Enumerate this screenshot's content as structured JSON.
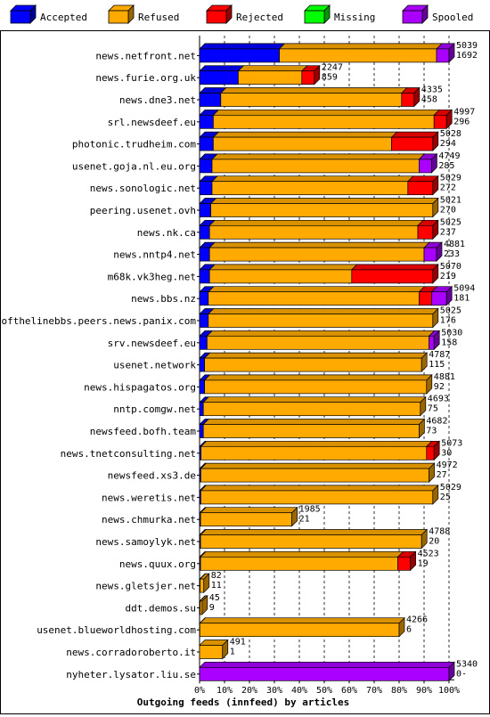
{
  "chart_data": {
    "type": "bar",
    "orientation": "horizontal",
    "stacked": true,
    "xlabel": "Outgoing feeds (innfeed) by articles",
    "x_ticks": [
      "0%",
      "10%",
      "20%",
      "30%",
      "40%",
      "50%",
      "60%",
      "70%",
      "80%",
      "90%",
      "100%"
    ],
    "xlim": [
      0,
      100
    ],
    "legend": {
      "placement": "top",
      "items": [
        {
          "name": "Accepted",
          "color": "#0000ff"
        },
        {
          "name": "Refused",
          "color": "#ffaa00"
        },
        {
          "name": "Rejected",
          "color": "#ff0000"
        },
        {
          "name": "Missing",
          "color": "#00ff00"
        },
        {
          "name": "Spooled",
          "color": "#aa00ff"
        }
      ]
    },
    "rows": [
      {
        "host": "news.netfront.net",
        "total": "5039",
        "accepted_label": "1692",
        "segments": [
          32,
          63,
          0,
          0,
          5
        ]
      },
      {
        "host": "news.furie.org.uk",
        "total": "2247",
        "accepted_label": "859",
        "segments": [
          15.5,
          25.5,
          5,
          0,
          0
        ]
      },
      {
        "host": "news.dne3.net",
        "total": "4335",
        "accepted_label": "458",
        "segments": [
          8.5,
          72.5,
          5,
          0,
          0
        ]
      },
      {
        "host": "srl.newsdeef.eu",
        "total": "4997",
        "accepted_label": "296",
        "segments": [
          5.5,
          88.5,
          5,
          0,
          0
        ]
      },
      {
        "host": "photonic.trudheim.com",
        "total": "5028",
        "accepted_label": "294",
        "segments": [
          5.5,
          71.5,
          16.5,
          0,
          0
        ]
      },
      {
        "host": "usenet.goja.nl.eu.org",
        "total": "4749",
        "accepted_label": "285",
        "segments": [
          5,
          83,
          0,
          0,
          5
        ]
      },
      {
        "host": "news.sonologic.net",
        "total": "5029",
        "accepted_label": "272",
        "segments": [
          5,
          78.5,
          10,
          0,
          0
        ]
      },
      {
        "host": "peering.usenet.ovh",
        "total": "5021",
        "accepted_label": "270",
        "segments": [
          4.5,
          89,
          0,
          0,
          0
        ]
      },
      {
        "host": "news.nk.ca",
        "total": "5025",
        "accepted_label": "237",
        "segments": [
          4,
          83.5,
          6,
          0,
          0
        ]
      },
      {
        "host": "news.nntp4.net",
        "total": "4881",
        "accepted_label": "233",
        "segments": [
          4,
          86,
          0,
          0,
          5
        ]
      },
      {
        "host": "m68k.vk3heg.net",
        "total": "5070",
        "accepted_label": "219",
        "segments": [
          4,
          57,
          32.5,
          0,
          0
        ]
      },
      {
        "host": "news.bbs.nz",
        "total": "5094",
        "accepted_label": "181",
        "segments": [
          3.5,
          84.5,
          5,
          0,
          6
        ]
      },
      {
        "host": "endofthelinebbs.peers.news.panix.com",
        "total": "5025",
        "accepted_label": "176",
        "segments": [
          3.5,
          90,
          0,
          0,
          0
        ]
      },
      {
        "host": "srv.newsdeef.eu",
        "total": "5030",
        "accepted_label": "158",
        "segments": [
          3,
          89,
          0,
          0,
          2
        ]
      },
      {
        "host": "usenet.network",
        "total": "4787",
        "accepted_label": "115",
        "segments": [
          2,
          87,
          0,
          0,
          0
        ]
      },
      {
        "host": "news.hispagatos.org",
        "total": "4881",
        "accepted_label": "92",
        "segments": [
          2,
          89,
          0,
          0,
          0
        ]
      },
      {
        "host": "nntp.comgw.net",
        "total": "4693",
        "accepted_label": "75",
        "segments": [
          1.5,
          87,
          0,
          0,
          0
        ]
      },
      {
        "host": "newsfeed.bofh.team",
        "total": "4682",
        "accepted_label": "73",
        "segments": [
          1.5,
          86.5,
          0,
          0,
          0
        ]
      },
      {
        "host": "news.tnetconsulting.net",
        "total": "5073",
        "accepted_label": "30",
        "segments": [
          0.6,
          90.4,
          3,
          0,
          0
        ]
      },
      {
        "host": "newsfeed.xs3.de",
        "total": "4972",
        "accepted_label": "27",
        "segments": [
          0.5,
          91.5,
          0,
          0,
          0
        ]
      },
      {
        "host": "news.weretis.net",
        "total": "5029",
        "accepted_label": "25",
        "segments": [
          0.5,
          93,
          0,
          0,
          0
        ]
      },
      {
        "host": "news.chmurka.net",
        "total": "1985",
        "accepted_label": "21",
        "segments": [
          0.4,
          36.6,
          0,
          0,
          0
        ]
      },
      {
        "host": "news.samoylyk.net",
        "total": "4788",
        "accepted_label": "20",
        "segments": [
          0.4,
          88.6,
          0,
          0,
          0
        ]
      },
      {
        "host": "news.quux.org",
        "total": "4523",
        "accepted_label": "19",
        "segments": [
          0.4,
          79.1,
          5,
          0,
          0
        ]
      },
      {
        "host": "news.gletsjer.net",
        "total": "82",
        "accepted_label": "11",
        "segments": [
          0.2,
          1.5,
          0,
          0,
          0
        ]
      },
      {
        "host": "ddt.demos.su",
        "total": "45",
        "accepted_label": "9",
        "segments": [
          0.2,
          0.8,
          0,
          0,
          0
        ]
      },
      {
        "host": "usenet.blueworldhosting.com",
        "total": "4266",
        "accepted_label": "6",
        "segments": [
          0.1,
          79.9,
          0,
          0,
          0
        ]
      },
      {
        "host": "news.corradoroberto.it",
        "total": "491",
        "accepted_label": "1",
        "segments": [
          0,
          9.2,
          0,
          0,
          0
        ]
      },
      {
        "host": "nyheter.lysator.liu.se",
        "total": "5340",
        "accepted_label": "0-",
        "segments": [
          0,
          0,
          0,
          0,
          100
        ]
      }
    ]
  }
}
